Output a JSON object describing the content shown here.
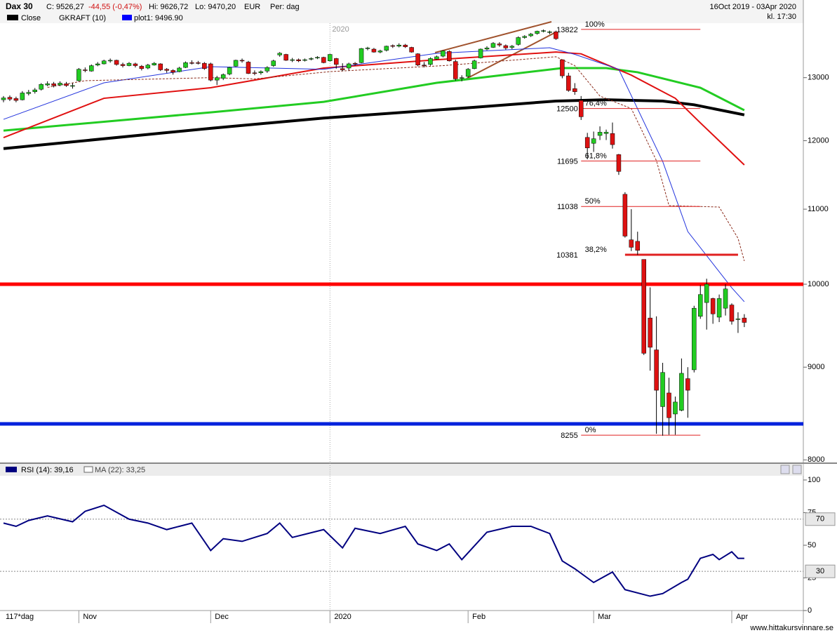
{
  "header": {
    "symbol": "Dax 30",
    "close": "C: 9526,27",
    "change": "-44,55 (-0,47%)",
    "high": "Hi: 9626,72",
    "low": "Lo: 9470,20",
    "currency": "EUR",
    "period": "Per: dag",
    "range": "16Oct 2019 - 03Apr 2020",
    "time": "kl. 17:30",
    "legend": [
      {
        "name": "Close",
        "color": "#000000"
      },
      {
        "name": "GKRAFT (10)"
      },
      {
        "name": "plot1: 9496.90",
        "color": "#0000ff"
      }
    ]
  },
  "chart_data": [
    {
      "type": "candlestick",
      "xlim": [
        -0.56,
        127.4
      ],
      "ylim": [
        7981,
        13932
      ],
      "log_scale": true,
      "yticks": [
        8000,
        9000,
        10000,
        11000,
        12000,
        13000
      ],
      "xticks": [
        {
          "value": 12,
          "label": "Nov"
        },
        {
          "value": 33,
          "label": "Dec"
        },
        {
          "value": 52,
          "label": "2020"
        },
        {
          "value": 74,
          "label": "Feb"
        },
        {
          "value": 94,
          "label": "Mar"
        },
        {
          "value": 116,
          "label": "Apr"
        }
      ],
      "year_marker": {
        "value": 52,
        "label": "2020"
      },
      "up_color": "#22cc22",
      "down_color": "#dd1111",
      "candles": [
        [
          12640,
          12700,
          12600,
          12670
        ],
        [
          12680,
          12710,
          12620,
          12650
        ],
        [
          12660,
          12690,
          12600,
          12630
        ],
        [
          12640,
          12780,
          12630,
          12750
        ],
        [
          12740,
          12800,
          12710,
          12760
        ],
        [
          12770,
          12830,
          12740,
          12800
        ],
        [
          12810,
          12910,
          12790,
          12890
        ],
        [
          12880,
          12940,
          12860,
          12900
        ],
        [
          12900,
          12930,
          12840,
          12870
        ],
        [
          12880,
          12940,
          12860,
          12910
        ],
        [
          12900,
          12930,
          12850,
          12870
        ],
        [
          12860,
          12910,
          12820,
          12870
        ],
        [
          12950,
          13160,
          12940,
          13140
        ],
        [
          13130,
          13170,
          13090,
          13120
        ],
        [
          13110,
          13220,
          13100,
          13200
        ],
        [
          13210,
          13260,
          13190,
          13230
        ],
        [
          13230,
          13300,
          13220,
          13280
        ],
        [
          13280,
          13320,
          13250,
          13290
        ],
        [
          13290,
          13300,
          13200,
          13220
        ],
        [
          13220,
          13250,
          13170,
          13200
        ],
        [
          13200,
          13260,
          13190,
          13240
        ],
        [
          13230,
          13250,
          13170,
          13200
        ],
        [
          13190,
          13210,
          13120,
          13150
        ],
        [
          13160,
          13230,
          13140,
          13210
        ],
        [
          13210,
          13260,
          13200,
          13240
        ],
        [
          13230,
          13240,
          13110,
          13130
        ],
        [
          13140,
          13160,
          13080,
          13120
        ],
        [
          13120,
          13140,
          13050,
          13090
        ],
        [
          13100,
          13180,
          13090,
          13160
        ],
        [
          13170,
          13270,
          13160,
          13250
        ],
        [
          13250,
          13290,
          13220,
          13240
        ],
        [
          13250,
          13280,
          13220,
          13240
        ],
        [
          13240,
          13260,
          13130,
          13150
        ],
        [
          13230,
          13250,
          12940,
          12960
        ],
        [
          12960,
          13030,
          12880,
          13000
        ],
        [
          12990,
          13070,
          12960,
          13050
        ],
        [
          13060,
          13180,
          13040,
          13170
        ],
        [
          13190,
          13300,
          13180,
          13290
        ],
        [
          13290,
          13320,
          13250,
          13280
        ],
        [
          13260,
          13280,
          13060,
          13070
        ],
        [
          13080,
          13120,
          13040,
          13070
        ],
        [
          13080,
          13120,
          13050,
          13100
        ],
        [
          13110,
          13190,
          13080,
          13170
        ],
        [
          13200,
          13300,
          13180,
          13280
        ],
        [
          13380,
          13430,
          13350,
          13410
        ],
        [
          13390,
          13400,
          13280,
          13290
        ],
        [
          13290,
          13330,
          13260,
          13300
        ],
        [
          13300,
          13320,
          13260,
          13280
        ],
        [
          13290,
          13320,
          13270,
          13300
        ],
        [
          13310,
          13340,
          13290,
          13320
        ],
        [
          13330,
          13360,
          13310,
          13340
        ],
        [
          13340,
          13350,
          13240,
          13250
        ],
        [
          13280,
          13400,
          13270,
          13390
        ],
        [
          13320,
          13330,
          13150,
          13220
        ],
        [
          13150,
          13240,
          13110,
          13130
        ],
        [
          13160,
          13250,
          13120,
          13230
        ],
        [
          13240,
          13260,
          13200,
          13230
        ],
        [
          13250,
          13500,
          13240,
          13490
        ],
        [
          13490,
          13520,
          13460,
          13500
        ],
        [
          13480,
          13500,
          13420,
          13430
        ],
        [
          13430,
          13470,
          13410,
          13450
        ],
        [
          13460,
          13540,
          13440,
          13530
        ],
        [
          13540,
          13560,
          13500,
          13530
        ],
        [
          13530,
          13580,
          13510,
          13550
        ],
        [
          13550,
          13570,
          13500,
          13520
        ],
        [
          13510,
          13520,
          13420,
          13430
        ],
        [
          13400,
          13410,
          13190,
          13210
        ],
        [
          13210,
          13260,
          13170,
          13200
        ],
        [
          13220,
          13340,
          13200,
          13320
        ],
        [
          13310,
          13370,
          13300,
          13350
        ],
        [
          13360,
          13460,
          13340,
          13450
        ],
        [
          13440,
          13460,
          13270,
          13280
        ],
        [
          13270,
          13300,
          12950,
          12980
        ],
        [
          13000,
          13040,
          12940,
          13000
        ],
        [
          13020,
          13160,
          13000,
          13140
        ],
        [
          13150,
          13300,
          13140,
          13280
        ],
        [
          13330,
          13490,
          13320,
          13480
        ],
        [
          13480,
          13530,
          13460,
          13500
        ],
        [
          13510,
          13600,
          13500,
          13580
        ],
        [
          13570,
          13600,
          13520,
          13550
        ],
        [
          13540,
          13560,
          13470,
          13500
        ],
        [
          13510,
          13550,
          13480,
          13530
        ],
        [
          13560,
          13700,
          13540,
          13680
        ],
        [
          13680,
          13720,
          13660,
          13700
        ],
        [
          13710,
          13760,
          13690,
          13740
        ],
        [
          13750,
          13800,
          13730,
          13790
        ],
        [
          13790,
          13820,
          13770,
          13800
        ],
        [
          13770,
          13800,
          13740,
          13780
        ],
        [
          13780,
          13800,
          13640,
          13660
        ],
        [
          13300,
          13300,
          12990,
          13030
        ],
        [
          13030,
          13080,
          12770,
          12790
        ],
        [
          12820,
          12910,
          12720,
          12770
        ],
        [
          12630,
          12700,
          12320,
          12370
        ],
        [
          12050,
          12120,
          11720,
          11890
        ],
        [
          11960,
          12140,
          11830,
          12030
        ],
        [
          12080,
          12220,
          12010,
          12130
        ],
        [
          12110,
          12170,
          12010,
          12130
        ],
        [
          12110,
          12280,
          11880,
          11940
        ],
        [
          11790,
          11800,
          11490,
          11540
        ],
        [
          11210,
          11240,
          10610,
          10630
        ],
        [
          10580,
          11000,
          10430,
          10480
        ],
        [
          10560,
          10690,
          10380,
          10440
        ],
        [
          10320,
          10320,
          9140,
          9160
        ],
        [
          9580,
          9960,
          8960,
          9230
        ],
        [
          9200,
          9600,
          8270,
          8740
        ],
        [
          8560,
          9050,
          8250,
          8940
        ],
        [
          8710,
          8880,
          8260,
          8440
        ],
        [
          8480,
          8670,
          8260,
          8610
        ],
        [
          8520,
          9100,
          8510,
          8930
        ],
        [
          8870,
          9000,
          8440,
          8740
        ],
        [
          8970,
          9730,
          8940,
          9700
        ],
        [
          9600,
          9990,
          9570,
          9870
        ],
        [
          9770,
          10070,
          9440,
          10000
        ],
        [
          9820,
          9830,
          9510,
          9630
        ],
        [
          9590,
          9870,
          9530,
          9820
        ],
        [
          9700,
          10000,
          9610,
          9940
        ],
        [
          9740,
          9760,
          9500,
          9540
        ],
        [
          9570,
          9650,
          9400,
          9570
        ],
        [
          9580,
          9627,
          9470,
          9526
        ]
      ],
      "overlays": [
        {
          "color": "#000000",
          "width": 4,
          "x": [
            0,
            33,
            51,
            75,
            88,
            96,
            105,
            110,
            118
          ],
          "values": [
            11880,
            12190,
            12350,
            12520,
            12620,
            12640,
            12620,
            12560,
            12400
          ]
        },
        {
          "color": "#22cc22",
          "width": 3,
          "x": [
            0,
            33,
            51,
            69,
            89,
            96,
            101,
            111,
            118
          ],
          "values": [
            12155,
            12440,
            12607,
            12915,
            13159,
            13159,
            13090,
            12835,
            12473
          ]
        },
        {
          "color": "#e01010",
          "width": 2,
          "x": [
            0,
            16,
            33,
            51,
            69,
            88,
            92,
            100,
            107,
            111,
            118
          ],
          "values": [
            12047,
            12664,
            12835,
            13159,
            13300,
            13430,
            13400,
            13042,
            12664,
            12275,
            11636
          ]
        },
        {
          "color": "#2233dd",
          "width": 1,
          "x": [
            0,
            16,
            33,
            51,
            69,
            87,
            91,
            98,
            105,
            109,
            116,
            118
          ],
          "values": [
            12330,
            12915,
            13183,
            13139,
            13408,
            13504,
            13390,
            13139,
            11688,
            10691,
            9955,
            9780
          ]
        },
        {
          "color": "#8b2a1a",
          "width": 1,
          "dash": true,
          "x": [
            7,
            13,
            33,
            40,
            52,
            70,
            88,
            91,
            95,
            100,
            104,
            106,
            114,
            117,
            118
          ],
          "values": [
            12840,
            12950,
            13000,
            12980,
            13100,
            13200,
            13350,
            13200,
            12700,
            12500,
            11700,
            11050,
            11030,
            10600,
            10300
          ]
        }
      ],
      "levels": [
        {
          "value": 10000,
          "color": "#ff0000"
        },
        {
          "value": 8375,
          "color": "#0022dd"
        }
      ],
      "fib_levels": [
        {
          "price": 13822,
          "label": "100%"
        },
        {
          "price": 12500,
          "label": "76,4%"
        },
        {
          "price": 11695,
          "label": "61,8%"
        },
        {
          "price": 11038,
          "label": "50%"
        },
        {
          "price": 10381,
          "label": "38,2%"
        },
        {
          "price": 8255,
          "label": "0%"
        }
      ]
    },
    {
      "type": "line",
      "period": "117*dag",
      "ma_legend": "MA (22): 33,25",
      "ylim": [
        0,
        103.2
      ],
      "yticks": [
        0,
        25,
        50,
        75,
        100
      ],
      "levels": [
        70,
        30
      ],
      "series": [
        {
          "name": "RSI (14): 39,16",
          "color": "#000080",
          "x": [
            0,
            2,
            4,
            7,
            11,
            13,
            16,
            20,
            23,
            26,
            30,
            33,
            35,
            38,
            42,
            44,
            46,
            51,
            54,
            56,
            60,
            64,
            66,
            69,
            71,
            73,
            77,
            81,
            84,
            87,
            89,
            91,
            94,
            97,
            99,
            103,
            105,
            108,
            109,
            111,
            113,
            114,
            116,
            117,
            118
          ],
          "values": [
            67,
            64.5,
            69,
            72.5,
            68,
            76,
            80.6,
            70,
            67,
            62,
            67,
            46,
            55,
            53,
            59,
            67,
            56,
            62,
            48,
            63,
            59,
            64.5,
            51,
            46,
            51,
            39,
            60,
            64.5,
            64.5,
            59,
            38,
            32,
            21.5,
            29.5,
            16,
            11,
            13,
            21.5,
            24,
            40,
            43,
            39,
            45,
            40,
            40
          ]
        }
      ]
    }
  ],
  "footer": "www.hittakursvinnare.se"
}
